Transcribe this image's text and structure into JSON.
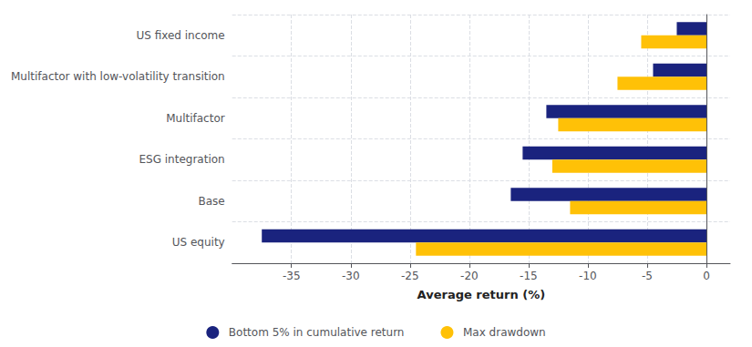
{
  "chart_data": {
    "type": "bar",
    "orientation": "horizontal",
    "categories": [
      "US equity",
      "Base",
      "ESG integration",
      "Multifactor",
      "Multifactor with low-volatility transition",
      "US fixed income"
    ],
    "series": [
      {
        "name": "Bottom 5% in cumulative return",
        "color": "#1a237e",
        "values": [
          -37.5,
          -16.5,
          -15.5,
          -13.5,
          -4.5,
          -2.5
        ]
      },
      {
        "name": "Max drawdown",
        "color": "#FFC107",
        "values": [
          -24.5,
          -11.5,
          -13.0,
          -12.5,
          -7.5,
          -5.5
        ]
      }
    ],
    "xlabel": "Average return (%)",
    "xlim": [
      -40,
      2
    ],
    "xticks": [
      -35,
      -30,
      -25,
      -20,
      -15,
      -10,
      -5,
      0
    ],
    "grid": true,
    "legend": "bottom"
  }
}
